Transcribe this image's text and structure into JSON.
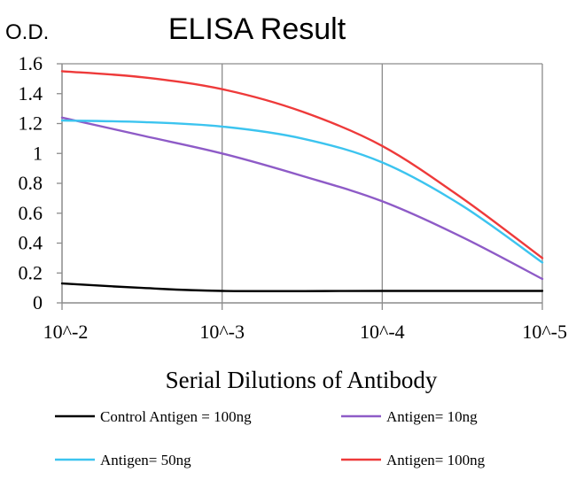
{
  "chart_data": {
    "type": "line",
    "title": "ELISA Result",
    "ylabel": "O.D.",
    "xlabel": "Serial Dilutions of Antibody",
    "categories": [
      "10^-2",
      "10^-3",
      "10^-4",
      "10^-5"
    ],
    "y_ticks": [
      "0",
      "0.2",
      "0.4",
      "0.6",
      "0.8",
      "1",
      "1.2",
      "1.4",
      "1.6"
    ],
    "ylim": [
      0,
      1.6
    ],
    "grid": "vertical",
    "legend_position": "bottom",
    "series": [
      {
        "name": "Control Antigen = 100ng",
        "color": "#000000",
        "points": [
          [
            0,
            0.13
          ],
          [
            0.5,
            0.1
          ],
          [
            1,
            0.08
          ],
          [
            2,
            0.08
          ],
          [
            3,
            0.08
          ]
        ]
      },
      {
        "name": "Antigen= 10ng",
        "color": "#8e5bc7",
        "points": [
          [
            0,
            1.24
          ],
          [
            0.5,
            1.12
          ],
          [
            1,
            1.0
          ],
          [
            1.5,
            0.85
          ],
          [
            2,
            0.68
          ],
          [
            2.5,
            0.44
          ],
          [
            3,
            0.16
          ]
        ]
      },
      {
        "name": "Antigen= 50ng",
        "color": "#3cc4ef",
        "points": [
          [
            0,
            1.22
          ],
          [
            0.5,
            1.21
          ],
          [
            1,
            1.18
          ],
          [
            1.5,
            1.1
          ],
          [
            2,
            0.94
          ],
          [
            2.5,
            0.65
          ],
          [
            3,
            0.27
          ]
        ]
      },
      {
        "name": "Antigen= 100ng",
        "color": "#ee3a3a",
        "points": [
          [
            0,
            1.55
          ],
          [
            0.5,
            1.51
          ],
          [
            1,
            1.43
          ],
          [
            1.5,
            1.28
          ],
          [
            2,
            1.05
          ],
          [
            2.5,
            0.7
          ],
          [
            3,
            0.3
          ]
        ]
      }
    ]
  }
}
